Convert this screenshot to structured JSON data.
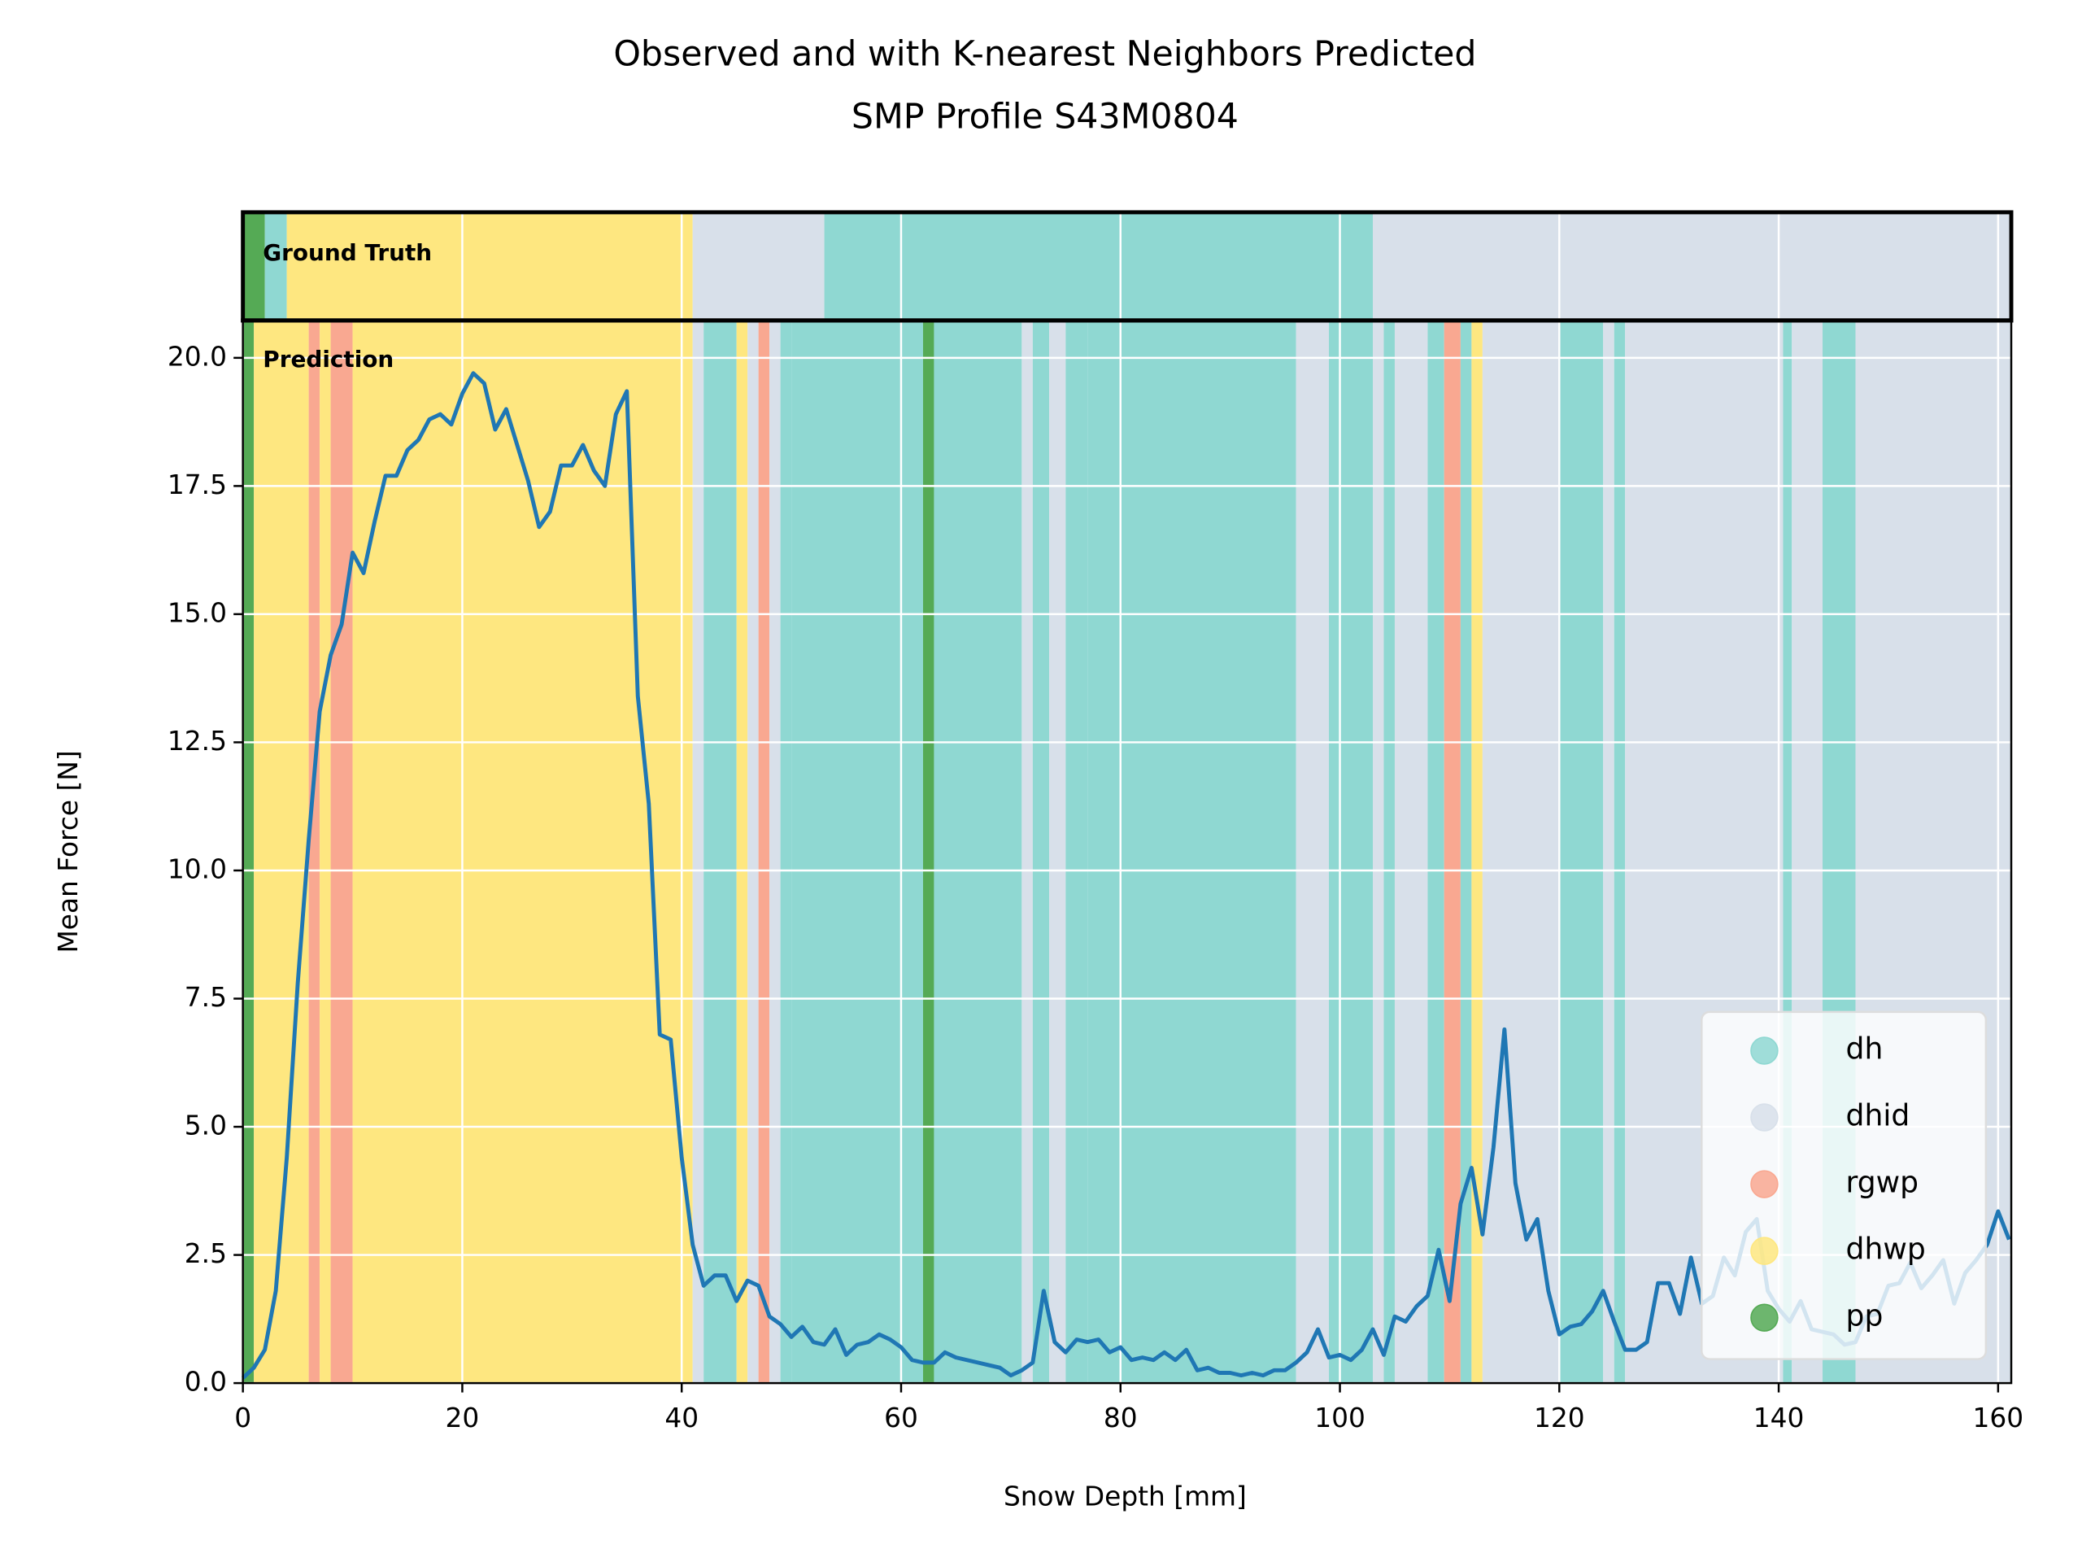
{
  "chart_data": {
    "type": "line",
    "title": "Observed and with K-nearest Neighbors Predicted",
    "subtitle": "SMP Profile S43M0804",
    "xlabel": "Snow Depth [mm]",
    "ylabel": "Mean Force [N]",
    "x": [
      0,
      1,
      2,
      3,
      4,
      5,
      6,
      7,
      8,
      9,
      10,
      11,
      12,
      13,
      14,
      15,
      16,
      17,
      18,
      19,
      20,
      21,
      22,
      23,
      24,
      25,
      26,
      27,
      28,
      29,
      30,
      31,
      32,
      33,
      34,
      35,
      36,
      37,
      38,
      39,
      40,
      41,
      42,
      43,
      44,
      45,
      46,
      47,
      48,
      49,
      50,
      51,
      52,
      53,
      54,
      55,
      56,
      57,
      58,
      59,
      60,
      61,
      62,
      63,
      64,
      65,
      66,
      67,
      68,
      69,
      70,
      71,
      72,
      73,
      74,
      75,
      76,
      77,
      78,
      79,
      80,
      81,
      82,
      83,
      84,
      85,
      86,
      87,
      88,
      89,
      90,
      91,
      92,
      93,
      94,
      95,
      96,
      97,
      98,
      99,
      100,
      101,
      102,
      103,
      104,
      105,
      106,
      107,
      108,
      109,
      110,
      111,
      112,
      113,
      114,
      115,
      116,
      117,
      118,
      119,
      120,
      121,
      122,
      123,
      124,
      125,
      126,
      127,
      128,
      129,
      130,
      131,
      132,
      133,
      134,
      135,
      136,
      137,
      138,
      139,
      140,
      141,
      142,
      143,
      144,
      145,
      146,
      147,
      148,
      149,
      150,
      151,
      152,
      153,
      154,
      155,
      156,
      157,
      158,
      159,
      160,
      161
    ],
    "series": [
      {
        "color": "#1f77b4",
        "values": [
          0.1,
          0.3,
          0.65,
          1.8,
          4.4,
          7.8,
          10.6,
          13.1,
          14.2,
          14.8,
          16.2,
          15.8,
          16.8,
          17.7,
          17.7,
          18.2,
          18.4,
          18.8,
          18.9,
          18.7,
          19.3,
          19.7,
          19.5,
          18.6,
          19.0,
          18.3,
          17.6,
          16.7,
          17.0,
          17.9,
          17.9,
          18.3,
          17.8,
          17.5,
          18.9,
          19.35,
          13.4,
          11.3,
          6.8,
          6.7,
          4.4,
          2.7,
          1.9,
          2.1,
          2.1,
          1.6,
          2.0,
          1.9,
          1.3,
          1.15,
          0.9,
          1.1,
          0.8,
          0.75,
          1.05,
          0.55,
          0.75,
          0.8,
          0.95,
          0.85,
          0.7,
          0.45,
          0.4,
          0.4,
          0.6,
          0.5,
          0.45,
          0.4,
          0.35,
          0.3,
          0.15,
          0.25,
          0.4,
          1.8,
          0.8,
          0.6,
          0.85,
          0.8,
          0.85,
          0.6,
          0.7,
          0.45,
          0.5,
          0.45,
          0.6,
          0.45,
          0.65,
          0.25,
          0.3,
          0.2,
          0.2,
          0.15,
          0.2,
          0.15,
          0.25,
          0.25,
          0.4,
          0.6,
          1.05,
          0.5,
          0.55,
          0.45,
          0.65,
          1.05,
          0.55,
          1.3,
          1.2,
          1.5,
          1.7,
          2.6,
          1.6,
          3.5,
          4.2,
          2.9,
          4.6,
          6.9,
          3.9,
          2.8,
          3.2,
          1.8,
          0.95,
          1.1,
          1.15,
          1.4,
          1.8,
          1.2,
          0.65,
          0.65,
          0.8,
          1.95,
          1.95,
          1.35,
          2.45,
          1.55,
          1.7,
          2.45,
          2.1,
          2.95,
          3.2,
          1.8,
          1.45,
          1.2,
          1.6,
          1.05,
          1.0,
          0.95,
          0.75,
          0.8,
          1.3,
          1.35,
          1.9,
          1.95,
          2.35,
          1.85,
          2.1,
          2.4,
          1.55,
          2.15,
          2.4,
          2.7,
          3.35,
          2.8
        ]
      }
    ],
    "xlim": [
      0,
      161.2
    ],
    "ylim": [
      0,
      20.73
    ],
    "xticks": [
      0,
      20,
      40,
      60,
      80,
      100,
      120,
      140,
      160
    ],
    "yticks": [
      {
        "value": 0,
        "label": "0.0"
      },
      {
        "value": 2.5,
        "label": "2.5"
      },
      {
        "value": 5,
        "label": "5.0"
      },
      {
        "value": 7.5,
        "label": "7.5"
      },
      {
        "value": 10,
        "label": "10.0"
      },
      {
        "value": 12.5,
        "label": "12.5"
      },
      {
        "value": 15,
        "label": "15.0"
      },
      {
        "value": 17.5,
        "label": "17.5"
      },
      {
        "value": 20,
        "label": "20.0"
      }
    ],
    "grid": true,
    "legend": {
      "loc": "lower right",
      "entries": [
        {
          "name": "dh",
          "color": "#8fd8d2"
        },
        {
          "name": "dhid",
          "color": "#d8e0ea"
        },
        {
          "name": "rgwp",
          "color": "#f9a891"
        },
        {
          "name": "dhwp",
          "color": "#fee780"
        },
        {
          "name": "pp",
          "color": "#55aa55"
        }
      ]
    },
    "strips": [
      {
        "label": "Ground Truth",
        "segments": [
          {
            "start": 0,
            "end": 2,
            "class": "pp"
          },
          {
            "start": 2,
            "end": 4,
            "class": "dh"
          },
          {
            "start": 4,
            "end": 41,
            "class": "dhwp"
          },
          {
            "start": 41,
            "end": 53,
            "class": "dhid"
          },
          {
            "start": 53,
            "end": 103,
            "class": "dh"
          },
          {
            "start": 103,
            "end": 161.2,
            "class": "dhid"
          }
        ]
      },
      {
        "label": "Prediction",
        "segments": [
          {
            "start": 0,
            "end": 1,
            "class": "pp"
          },
          {
            "start": 1,
            "end": 6,
            "class": "dhwp"
          },
          {
            "start": 6,
            "end": 7,
            "class": "rgwp"
          },
          {
            "start": 7,
            "end": 8,
            "class": "dhwp"
          },
          {
            "start": 8,
            "end": 10,
            "class": "rgwp"
          },
          {
            "start": 10,
            "end": 41,
            "class": "dhwp"
          },
          {
            "start": 41,
            "end": 42,
            "class": "dhid"
          },
          {
            "start": 42,
            "end": 45,
            "class": "dh"
          },
          {
            "start": 45,
            "end": 46,
            "class": "dhwp"
          },
          {
            "start": 46,
            "end": 47,
            "class": "dhid"
          },
          {
            "start": 47,
            "end": 48,
            "class": "rgwp"
          },
          {
            "start": 48,
            "end": 49,
            "class": "dhid"
          },
          {
            "start": 49,
            "end": 50,
            "class": "dh"
          },
          {
            "start": 50,
            "end": 62,
            "class": "dh"
          },
          {
            "start": 62,
            "end": 63,
            "class": "pp"
          },
          {
            "start": 63,
            "end": 71,
            "class": "dh"
          },
          {
            "start": 71,
            "end": 72,
            "class": "dhid"
          },
          {
            "start": 72,
            "end": 73.5,
            "class": "dh"
          },
          {
            "start": 73.5,
            "end": 75,
            "class": "dhid"
          },
          {
            "start": 75,
            "end": 77,
            "class": "dh"
          },
          {
            "start": 77,
            "end": 96,
            "class": "dh"
          },
          {
            "start": 96,
            "end": 99,
            "class": "dhid"
          },
          {
            "start": 99,
            "end": 103,
            "class": "dh"
          },
          {
            "start": 103,
            "end": 104,
            "class": "dhid"
          },
          {
            "start": 104,
            "end": 105,
            "class": "dh"
          },
          {
            "start": 105,
            "end": 108,
            "class": "dhid"
          },
          {
            "start": 108,
            "end": 109.5,
            "class": "dh"
          },
          {
            "start": 109.5,
            "end": 111,
            "class": "rgwp"
          },
          {
            "start": 111,
            "end": 112,
            "class": "dh"
          },
          {
            "start": 112,
            "end": 113,
            "class": "dhwp"
          },
          {
            "start": 113,
            "end": 120,
            "class": "dhid"
          },
          {
            "start": 120,
            "end": 124,
            "class": "dh"
          },
          {
            "start": 124,
            "end": 125,
            "class": "dhid"
          },
          {
            "start": 125,
            "end": 126,
            "class": "dh"
          },
          {
            "start": 126,
            "end": 140.4,
            "class": "dhid"
          },
          {
            "start": 140.4,
            "end": 141.2,
            "class": "dh"
          },
          {
            "start": 141.2,
            "end": 144,
            "class": "dhid"
          },
          {
            "start": 144,
            "end": 147,
            "class": "dh"
          },
          {
            "start": 147,
            "end": 161.2,
            "class": "dhid"
          }
        ]
      }
    ]
  }
}
